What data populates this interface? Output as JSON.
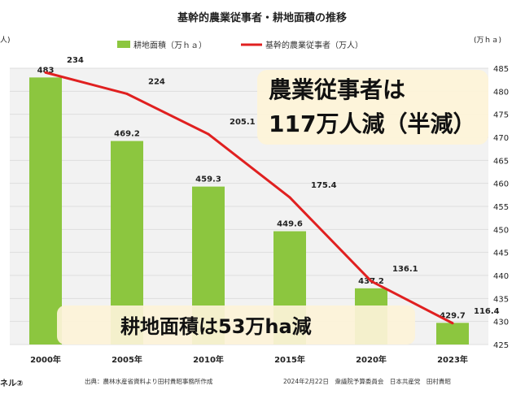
{
  "chart_data": {
    "type": "bar",
    "title": "基幹的農業従事者・耕地面積の推移",
    "categories": [
      "2000年",
      "2005年",
      "2010年",
      "2015年",
      "2020年",
      "2023年"
    ],
    "series": [
      {
        "name": "耕地面積（万ｈａ）",
        "kind": "bar",
        "axis": "right",
        "color": "#8cc63f",
        "values": [
          483,
          469.2,
          459.3,
          449.6,
          437.2,
          429.7
        ],
        "labels": [
          "483",
          "469.2",
          "459.3",
          "449.6",
          "437.2",
          "429.7"
        ]
      },
      {
        "name": "基幹的農業従事者（万人）",
        "kind": "line",
        "axis": "left",
        "color": "#e02020",
        "values": [
          234,
          224,
          205.1,
          175.4,
          136.1,
          116.4
        ],
        "labels": [
          "234",
          "224",
          "205.1",
          "175.4",
          "136.1",
          "116.4"
        ]
      }
    ],
    "right_axis": {
      "unit": "(万ｈａ)",
      "ylim": [
        425,
        485
      ],
      "ticks": [
        "485",
        "480",
        "475",
        "470",
        "465",
        "460",
        "455",
        "450",
        "445",
        "440",
        "435",
        "430",
        "425"
      ]
    },
    "left_axis": {
      "unit": "人)",
      "ylim": [
        106.4,
        236
      ]
    },
    "grid": true,
    "legend": "top-center"
  },
  "callouts": {
    "workers_line1": "農業従事者は",
    "workers_line2": "117万人減（半減）",
    "farmland": "耕地面積は53万ha減"
  },
  "footer": {
    "left": "ネル②",
    "source": "出典：農林水産省資料より田村貴昭事務所作成",
    "meeting": "2024年2月22日　衆議院予算委員会　日本共産党　田村貴昭"
  }
}
